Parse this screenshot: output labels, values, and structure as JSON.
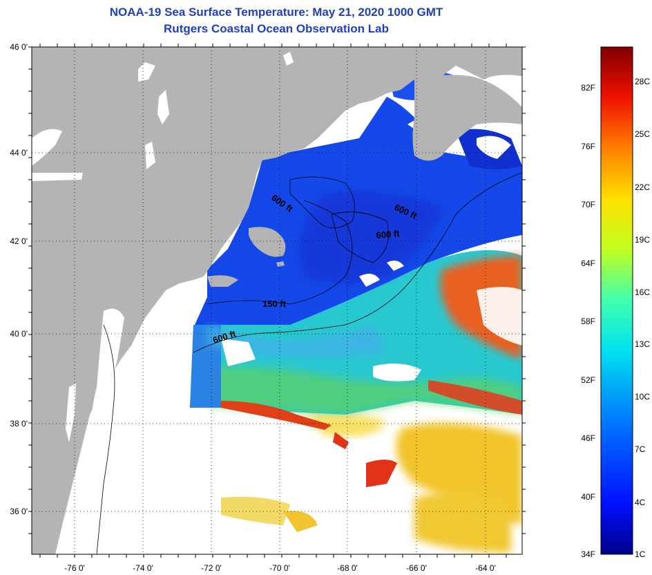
{
  "title": {
    "line1": "NOAA-19 Sea Surface Temperature:  May 21, 2020 1000 GMT",
    "line2": "Rutgers Coastal Ocean Observation Lab"
  },
  "map": {
    "lat_labels": [
      "46 0'",
      "44 0'",
      "42 0'",
      "40 0'",
      "38 0'",
      "36 0'"
    ],
    "lon_labels": [
      "-76 0'",
      "-74 0'",
      "-72 0'",
      "-70 0'",
      "-68 0'",
      "-66 0'",
      "-64 0'"
    ],
    "contour_labels": [
      "600 ft",
      "600 ft",
      "600 ft",
      "150 ft",
      "600 ft"
    ],
    "colors": {
      "land": "#b4b4b4",
      "cloud": "#ffffff",
      "cold_water": "#1040e0",
      "mid_water": "#20c0e0",
      "warm_water": "#f0c020",
      "hot_water": "#e83010"
    }
  },
  "colorbar": {
    "fahrenheit_labels": [
      "82F",
      "76F",
      "70F",
      "64F",
      "58F",
      "52F",
      "46F",
      "40F",
      "34F"
    ],
    "celsius_labels": [
      "28C",
      "25C",
      "22C",
      "19C",
      "16C",
      "13C",
      "10C",
      "7C",
      "4C",
      "1C"
    ]
  }
}
